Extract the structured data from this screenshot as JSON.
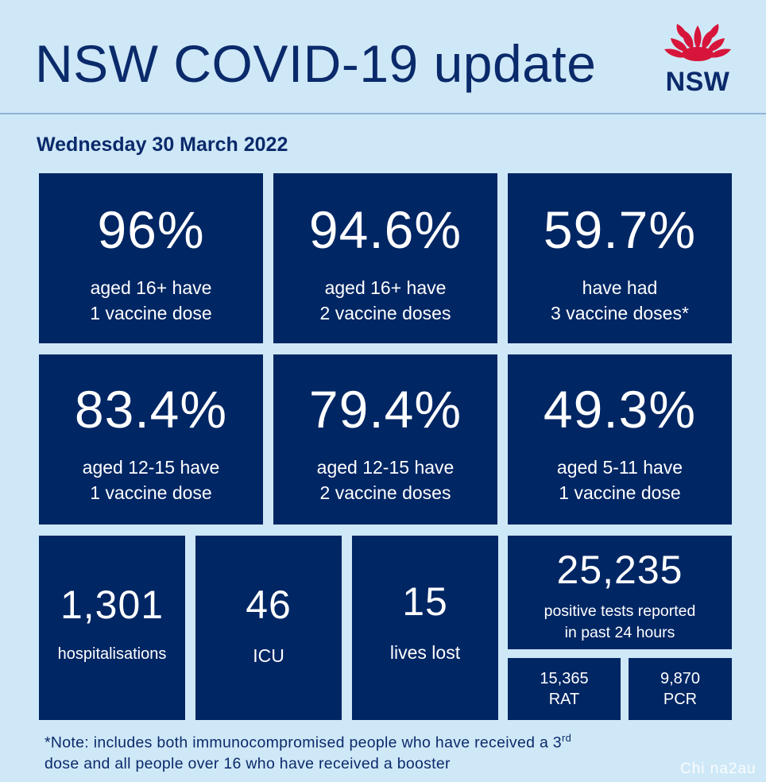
{
  "header": {
    "title": "NSW COVID-19 update",
    "logo_text": "NSW"
  },
  "date": "Wednesday 30 March 2022",
  "tiles": [
    {
      "value": "96%",
      "line1": "aged 16+ have",
      "line2": "1 vaccine dose"
    },
    {
      "value": "94.6%",
      "line1": "aged 16+ have",
      "line2": "2 vaccine doses"
    },
    {
      "value": "59.7%",
      "line1": "have had",
      "line2": "3 vaccine doses*"
    },
    {
      "value": "83.4%",
      "line1": "aged 12-15 have",
      "line2": "1 vaccine dose"
    },
    {
      "value": "79.4%",
      "line1": "aged 12-15 have",
      "line2": "2 vaccine doses"
    },
    {
      "value": "49.3%",
      "line1": "aged 5-11 have",
      "line2": "1 vaccine dose"
    }
  ],
  "stats": {
    "hospitalisations": {
      "value": "1,301",
      "label": "hospitalisations"
    },
    "icu": {
      "value": "46",
      "label": "ICU"
    },
    "lives_lost": {
      "value": "15",
      "label": "lives lost"
    },
    "positive_tests": {
      "value": "25,235",
      "line1": "positive tests reported",
      "line2": "in past 24 hours"
    },
    "rat": {
      "value": "15,365",
      "label": "RAT"
    },
    "pcr": {
      "value": "9,870",
      "label": "PCR"
    }
  },
  "note": {
    "part1": "*Note: includes both immunocompromised  people who have received a 3",
    "sup": "rd",
    "part2": "dose and all people over 16 who have received a booster"
  },
  "watermark": "Chi na2au",
  "colors": {
    "background": "#cfe8f7",
    "tile": "#002664",
    "text_dark": "#0b2a6b",
    "logo_red": "#d7153a"
  }
}
